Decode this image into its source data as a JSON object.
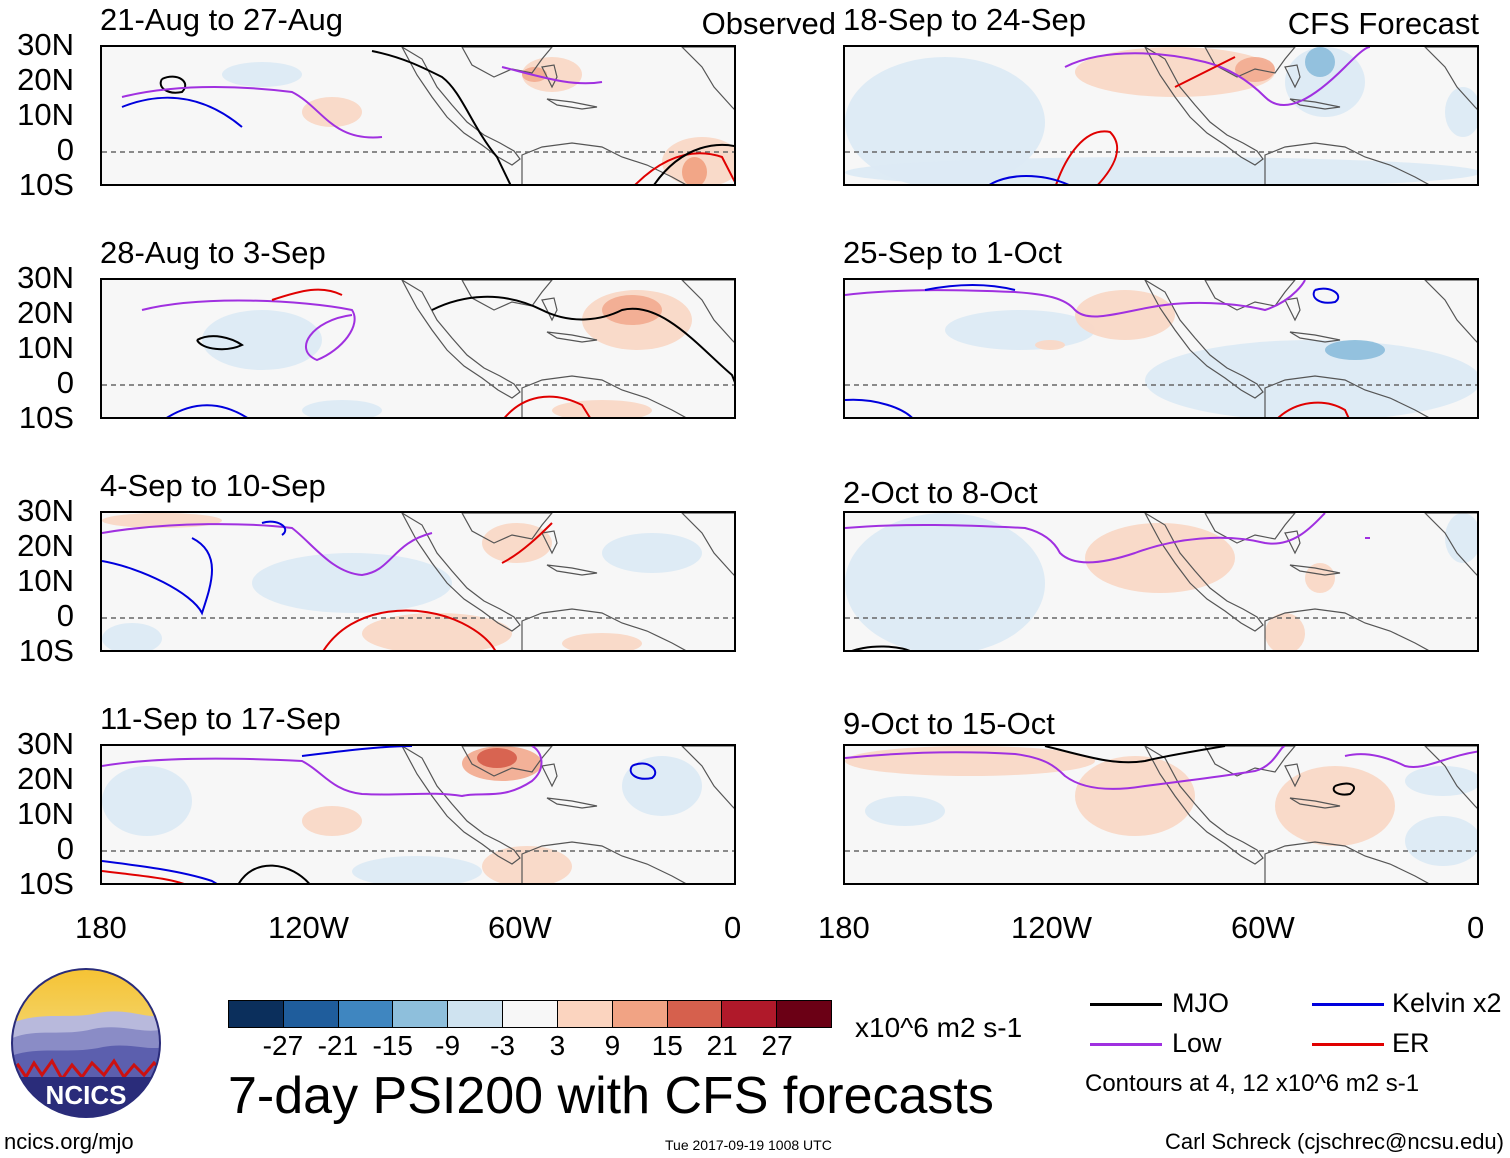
{
  "map": {
    "observed_label": "Observed",
    "forecast_label": "CFS Forecast",
    "lat_labels": [
      "30N",
      "20N",
      "10N",
      "0",
      "10S"
    ],
    "lon_labels": [
      "180",
      "120W",
      "60W",
      "0"
    ],
    "observed_panels": [
      {
        "title": "21-Aug to 27-Aug"
      },
      {
        "title": "28-Aug to 3-Sep"
      },
      {
        "title": "4-Sep to 10-Sep"
      },
      {
        "title": "11-Sep to 17-Sep"
      }
    ],
    "forecast_panels": [
      {
        "title": "18-Sep to 24-Sep"
      },
      {
        "title": "25-Sep to 1-Oct"
      },
      {
        "title": "2-Oct to 8-Oct"
      },
      {
        "title": "9-Oct to 15-Oct"
      }
    ]
  },
  "colorbar": {
    "labels": [
      "-27",
      "-21",
      "-15",
      "-9",
      "-3",
      "3",
      "9",
      "15",
      "21",
      "27"
    ],
    "colors": [
      "#0b2f5c",
      "#1f5d9c",
      "#3f86c0",
      "#8ebfdc",
      "#cfe3f0",
      "#f7f7f7",
      "#fbd4bf",
      "#f1a384",
      "#d6604d",
      "#b0192a",
      "#6b0015"
    ],
    "units": "x10^6 m2 s-1"
  },
  "title": "7-day PSI200 with CFS forecasts",
  "legend": {
    "items": [
      {
        "label": "MJO",
        "color": "#000000"
      },
      {
        "label": "Kelvin x2",
        "color": "#0000dd"
      },
      {
        "label": "Low",
        "color": "#a030e0"
      },
      {
        "label": "ER",
        "color": "#e00000"
      }
    ],
    "contours_note": "Contours at 4, 12 x10^6 m2 s-1"
  },
  "logo": {
    "text": "NCICS"
  },
  "footer": {
    "url": "ncics.org/mjo",
    "timestamp": "Tue 2017-09-19 1008 UTC",
    "author": "Carl Schreck (cjschrec@ncsu.edu)"
  }
}
